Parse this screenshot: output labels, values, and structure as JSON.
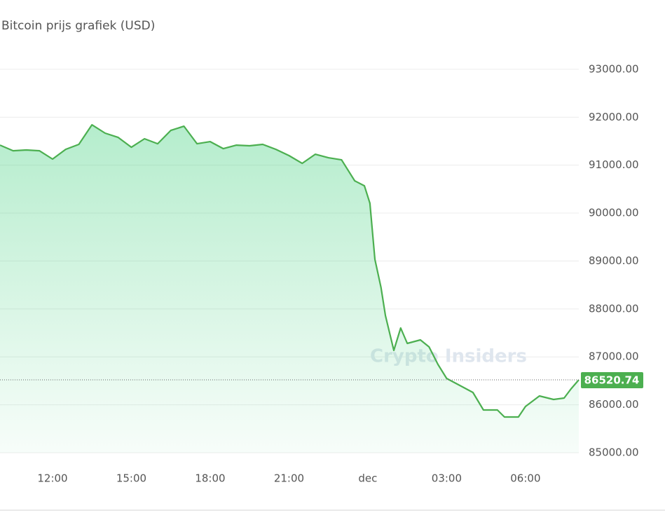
{
  "chart_data": {
    "type": "line",
    "title": "Bitcoin prijs grafiek (USD)",
    "watermark": "Crypto Insiders",
    "color": "#4caf50",
    "grid": true,
    "x": [
      10.0,
      10.5,
      11.0,
      11.5,
      12.0,
      12.5,
      13.0,
      13.5,
      14.0,
      14.5,
      15.0,
      15.5,
      16.0,
      16.5,
      17.0,
      17.5,
      18.0,
      18.5,
      19.0,
      19.5,
      20.0,
      20.5,
      21.0,
      21.5,
      22.0,
      22.5,
      23.0,
      23.5,
      23.87,
      24.08,
      24.27,
      24.5,
      24.67,
      24.99,
      25.25,
      25.5,
      26.0,
      26.33,
      26.67,
      27.0,
      27.5,
      28.0,
      28.4,
      28.93,
      29.2,
      29.73,
      30.0,
      30.53,
      31.07,
      31.47,
      31.73,
      32.03
    ],
    "values": [
      91418,
      91300,
      91316,
      91300,
      91126,
      91330,
      91433,
      91842,
      91667,
      91579,
      91374,
      91550,
      91447,
      91725,
      91813,
      91447,
      91491,
      91345,
      91418,
      91404,
      91433,
      91330,
      91199,
      91038,
      91228,
      91155,
      91111,
      90673,
      90570,
      90205,
      89035,
      88450,
      87865,
      87135,
      87602,
      87281,
      87354,
      87208,
      86842,
      86550,
      86404,
      86257,
      85892,
      85892,
      85746,
      85746,
      85965,
      86184,
      86111,
      86140,
      86330,
      86520.74
    ],
    "last_price": 86520.74,
    "xlim": [
      10,
      32.03
    ],
    "xticks": [
      {
        "value": 12,
        "label": "12:00"
      },
      {
        "value": 15,
        "label": "15:00"
      },
      {
        "value": 18,
        "label": "18:00"
      },
      {
        "value": 21,
        "label": "21:00"
      },
      {
        "value": 24,
        "label": "dec"
      },
      {
        "value": 27,
        "label": "03:00"
      },
      {
        "value": 30,
        "label": "06:00"
      }
    ],
    "ylim": [
      85000,
      93700
    ],
    "yticks": [
      {
        "value": 85000,
        "label": "85000.00"
      },
      {
        "value": 86000,
        "label": "86000.00"
      },
      {
        "value": 87000,
        "label": "87000.00"
      },
      {
        "value": 88000,
        "label": "88000.00"
      },
      {
        "value": 89000,
        "label": "89000.00"
      },
      {
        "value": 90000,
        "label": "90000.00"
      },
      {
        "value": 91000,
        "label": "91000.00"
      },
      {
        "value": 92000,
        "label": "92000.00"
      },
      {
        "value": 93000,
        "label": "93000.00"
      }
    ]
  }
}
